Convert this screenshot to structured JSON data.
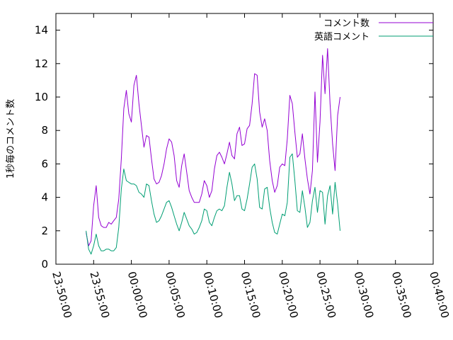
{
  "chart_data": {
    "type": "line",
    "xlabel": "",
    "ylabel": "1秒毎のコメント数",
    "xlim": [
      "23:50:00",
      "00:40:00"
    ],
    "ylim": [
      0,
      15
    ],
    "y_ticks": [
      0,
      2,
      4,
      6,
      8,
      10,
      12,
      14
    ],
    "x_ticks": [
      "23:50:00",
      "23:55:00",
      "00:00:00",
      "00:05:00",
      "00:10:00",
      "00:15:00",
      "00:20:00",
      "00:25:00",
      "00:30:00",
      "00:35:00",
      "00:40:00"
    ],
    "legend_position": "top-right",
    "grid": false,
    "series": [
      {
        "name": "コメント数",
        "color": "#9400d3",
        "points": [
          [
            "23:54:00",
            1.9
          ],
          [
            "23:54:20",
            1.1
          ],
          [
            "23:54:40",
            1.4
          ],
          [
            "23:55:00",
            3.5
          ],
          [
            "23:55:20",
            4.7
          ],
          [
            "23:55:40",
            2.8
          ],
          [
            "23:56:00",
            2.3
          ],
          [
            "23:56:20",
            2.2
          ],
          [
            "23:56:40",
            2.2
          ],
          [
            "23:57:00",
            2.5
          ],
          [
            "23:57:20",
            2.4
          ],
          [
            "23:57:40",
            2.6
          ],
          [
            "23:58:00",
            2.8
          ],
          [
            "23:58:20",
            3.9
          ],
          [
            "23:58:40",
            6.3
          ],
          [
            "23:59:00",
            9.3
          ],
          [
            "23:59:20",
            10.4
          ],
          [
            "23:59:40",
            9.0
          ],
          [
            "00:00:00",
            8.5
          ],
          [
            "00:00:20",
            10.7
          ],
          [
            "00:00:40",
            11.3
          ],
          [
            "00:01:00",
            9.6
          ],
          [
            "00:01:20",
            8.3
          ],
          [
            "00:01:40",
            7.0
          ],
          [
            "00:02:00",
            7.7
          ],
          [
            "00:02:20",
            7.6
          ],
          [
            "00:02:40",
            6.3
          ],
          [
            "00:03:00",
            5.1
          ],
          [
            "00:03:20",
            4.8
          ],
          [
            "00:03:40",
            4.9
          ],
          [
            "00:04:00",
            5.3
          ],
          [
            "00:04:20",
            6.0
          ],
          [
            "00:04:40",
            6.9
          ],
          [
            "00:05:00",
            7.5
          ],
          [
            "00:05:20",
            7.3
          ],
          [
            "00:05:40",
            6.5
          ],
          [
            "00:06:00",
            5.0
          ],
          [
            "00:06:20",
            4.6
          ],
          [
            "00:06:40",
            5.9
          ],
          [
            "00:07:00",
            6.6
          ],
          [
            "00:07:20",
            5.5
          ],
          [
            "00:07:40",
            4.4
          ],
          [
            "00:08:00",
            4.0
          ],
          [
            "00:08:20",
            3.7
          ],
          [
            "00:08:40",
            3.7
          ],
          [
            "00:09:00",
            3.7
          ],
          [
            "00:09:20",
            4.2
          ],
          [
            "00:09:40",
            5.0
          ],
          [
            "00:10:00",
            4.7
          ],
          [
            "00:10:20",
            4.0
          ],
          [
            "00:10:40",
            4.4
          ],
          [
            "00:11:00",
            5.7
          ],
          [
            "00:11:20",
            6.5
          ],
          [
            "00:11:40",
            6.7
          ],
          [
            "00:12:00",
            6.4
          ],
          [
            "00:12:20",
            6.0
          ],
          [
            "00:12:40",
            6.6
          ],
          [
            "00:13:00",
            7.3
          ],
          [
            "00:13:20",
            6.5
          ],
          [
            "00:13:40",
            6.3
          ],
          [
            "00:14:00",
            7.8
          ],
          [
            "00:14:20",
            8.2
          ],
          [
            "00:14:40",
            7.1
          ],
          [
            "00:15:00",
            7.2
          ],
          [
            "00:15:20",
            8.1
          ],
          [
            "00:15:40",
            8.3
          ],
          [
            "00:16:00",
            9.6
          ],
          [
            "00:16:20",
            11.4
          ],
          [
            "00:16:40",
            11.3
          ],
          [
            "00:17:00",
            9.1
          ],
          [
            "00:17:20",
            8.2
          ],
          [
            "00:17:40",
            8.7
          ],
          [
            "00:18:00",
            8.0
          ],
          [
            "00:18:20",
            6.2
          ],
          [
            "00:18:40",
            5.0
          ],
          [
            "00:19:00",
            4.3
          ],
          [
            "00:19:20",
            4.7
          ],
          [
            "00:19:40",
            5.8
          ],
          [
            "00:20:00",
            6.0
          ],
          [
            "00:20:20",
            5.9
          ],
          [
            "00:20:40",
            7.5
          ],
          [
            "00:21:00",
            10.1
          ],
          [
            "00:21:20",
            9.6
          ],
          [
            "00:21:40",
            7.9
          ],
          [
            "00:22:00",
            6.4
          ],
          [
            "00:22:20",
            6.6
          ],
          [
            "00:22:40",
            7.8
          ],
          [
            "00:23:00",
            6.3
          ],
          [
            "00:23:20",
            5.1
          ],
          [
            "00:23:40",
            4.2
          ],
          [
            "00:24:00",
            5.6
          ],
          [
            "00:24:20",
            10.3
          ],
          [
            "00:24:40",
            6.1
          ],
          [
            "00:25:00",
            8.5
          ],
          [
            "00:25:20",
            12.5
          ],
          [
            "00:25:40",
            10.2
          ],
          [
            "00:26:00",
            12.9
          ],
          [
            "00:26:20",
            9.6
          ],
          [
            "00:26:40",
            7.2
          ],
          [
            "00:27:00",
            5.6
          ],
          [
            "00:27:20",
            8.9
          ],
          [
            "00:27:40",
            10.0
          ]
        ]
      },
      {
        "name": "英語コメント",
        "color": "#009e73",
        "points": [
          [
            "23:54:00",
            2.0
          ],
          [
            "23:54:20",
            0.9
          ],
          [
            "23:54:40",
            0.6
          ],
          [
            "23:55:00",
            1.1
          ],
          [
            "23:55:20",
            1.8
          ],
          [
            "23:55:40",
            1.1
          ],
          [
            "23:56:00",
            0.8
          ],
          [
            "23:56:20",
            0.8
          ],
          [
            "23:56:40",
            0.9
          ],
          [
            "23:57:00",
            0.9
          ],
          [
            "23:57:20",
            0.8
          ],
          [
            "23:57:40",
            0.8
          ],
          [
            "23:58:00",
            1.0
          ],
          [
            "23:58:20",
            2.2
          ],
          [
            "23:58:40",
            4.5
          ],
          [
            "23:59:00",
            5.7
          ],
          [
            "23:59:20",
            5.0
          ],
          [
            "23:59:40",
            4.9
          ],
          [
            "00:00:00",
            4.8
          ],
          [
            "00:00:20",
            4.8
          ],
          [
            "00:00:40",
            4.7
          ],
          [
            "00:01:00",
            4.3
          ],
          [
            "00:01:20",
            4.2
          ],
          [
            "00:01:40",
            4.0
          ],
          [
            "00:02:00",
            4.8
          ],
          [
            "00:02:20",
            4.7
          ],
          [
            "00:02:40",
            3.8
          ],
          [
            "00:03:00",
            3.0
          ],
          [
            "00:03:20",
            2.5
          ],
          [
            "00:03:40",
            2.6
          ],
          [
            "00:04:00",
            2.9
          ],
          [
            "00:04:20",
            3.3
          ],
          [
            "00:04:40",
            3.7
          ],
          [
            "00:05:00",
            3.8
          ],
          [
            "00:05:20",
            3.4
          ],
          [
            "00:05:40",
            2.9
          ],
          [
            "00:06:00",
            2.4
          ],
          [
            "00:06:20",
            2.0
          ],
          [
            "00:06:40",
            2.5
          ],
          [
            "00:07:00",
            3.1
          ],
          [
            "00:07:20",
            2.7
          ],
          [
            "00:07:40",
            2.3
          ],
          [
            "00:08:00",
            2.1
          ],
          [
            "00:08:20",
            1.8
          ],
          [
            "00:08:40",
            1.9
          ],
          [
            "00:09:00",
            2.2
          ],
          [
            "00:09:20",
            2.6
          ],
          [
            "00:09:40",
            3.3
          ],
          [
            "00:10:00",
            3.2
          ],
          [
            "00:10:20",
            2.5
          ],
          [
            "00:10:40",
            2.3
          ],
          [
            "00:11:00",
            2.8
          ],
          [
            "00:11:20",
            3.2
          ],
          [
            "00:11:40",
            3.3
          ],
          [
            "00:12:00",
            3.2
          ],
          [
            "00:12:20",
            3.5
          ],
          [
            "00:12:40",
            4.6
          ],
          [
            "00:13:00",
            5.5
          ],
          [
            "00:13:20",
            4.8
          ],
          [
            "00:13:40",
            3.8
          ],
          [
            "00:14:00",
            4.1
          ],
          [
            "00:14:20",
            4.1
          ],
          [
            "00:14:40",
            3.3
          ],
          [
            "00:15:00",
            3.2
          ],
          [
            "00:15:20",
            3.9
          ],
          [
            "00:15:40",
            4.8
          ],
          [
            "00:16:00",
            5.8
          ],
          [
            "00:16:20",
            6.0
          ],
          [
            "00:16:40",
            5.1
          ],
          [
            "00:17:00",
            3.4
          ],
          [
            "00:17:20",
            3.3
          ],
          [
            "00:17:40",
            4.5
          ],
          [
            "00:18:00",
            4.6
          ],
          [
            "00:18:20",
            3.4
          ],
          [
            "00:18:40",
            2.5
          ],
          [
            "00:19:00",
            1.9
          ],
          [
            "00:19:20",
            1.8
          ],
          [
            "00:19:40",
            2.4
          ],
          [
            "00:20:00",
            3.0
          ],
          [
            "00:20:20",
            2.9
          ],
          [
            "00:20:40",
            3.7
          ],
          [
            "00:21:00",
            6.4
          ],
          [
            "00:21:20",
            6.6
          ],
          [
            "00:21:40",
            5.0
          ],
          [
            "00:22:00",
            3.2
          ],
          [
            "00:22:20",
            3.1
          ],
          [
            "00:22:40",
            4.4
          ],
          [
            "00:23:00",
            3.4
          ],
          [
            "00:23:20",
            2.2
          ],
          [
            "00:23:40",
            2.5
          ],
          [
            "00:24:00",
            3.8
          ],
          [
            "00:24:20",
            4.6
          ],
          [
            "00:24:40",
            3.1
          ],
          [
            "00:25:00",
            4.4
          ],
          [
            "00:25:20",
            4.3
          ],
          [
            "00:25:40",
            2.4
          ],
          [
            "00:26:00",
            4.1
          ],
          [
            "00:26:20",
            4.7
          ],
          [
            "00:26:40",
            3.0
          ],
          [
            "00:27:00",
            4.9
          ],
          [
            "00:27:20",
            3.6
          ],
          [
            "00:27:40",
            2.0
          ]
        ]
      }
    ]
  }
}
